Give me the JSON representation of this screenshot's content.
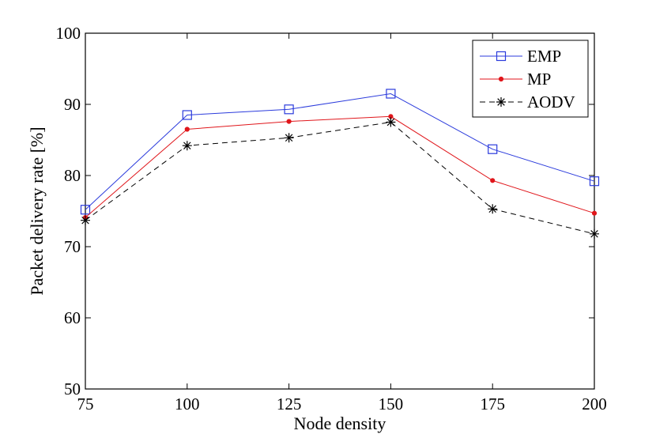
{
  "chart_data": {
    "type": "line",
    "title": "",
    "xlabel": "Node density",
    "ylabel": "Packet delivery rate [%]",
    "x": [
      75,
      100,
      125,
      150,
      175,
      200
    ],
    "xlim": [
      75,
      200
    ],
    "ylim": [
      50,
      100
    ],
    "xticks": [
      75,
      100,
      125,
      150,
      175,
      200
    ],
    "yticks": [
      50,
      60,
      70,
      80,
      90,
      100
    ],
    "grid": false,
    "legend_position": "top-right",
    "series": [
      {
        "name": "EMP",
        "color": "#2b3bdc",
        "marker": "square",
        "dash": "solid",
        "values": [
          75.2,
          88.5,
          89.3,
          91.5,
          83.7,
          79.2
        ]
      },
      {
        "name": "MP",
        "color": "#e0161b",
        "marker": "dot",
        "dash": "solid",
        "values": [
          74.1,
          86.5,
          87.6,
          88.3,
          79.3,
          74.7
        ]
      },
      {
        "name": "AODV",
        "color": "#000000",
        "marker": "asterisk",
        "dash": "dashed",
        "values": [
          73.7,
          84.2,
          85.3,
          87.5,
          75.3,
          71.8
        ]
      }
    ]
  }
}
